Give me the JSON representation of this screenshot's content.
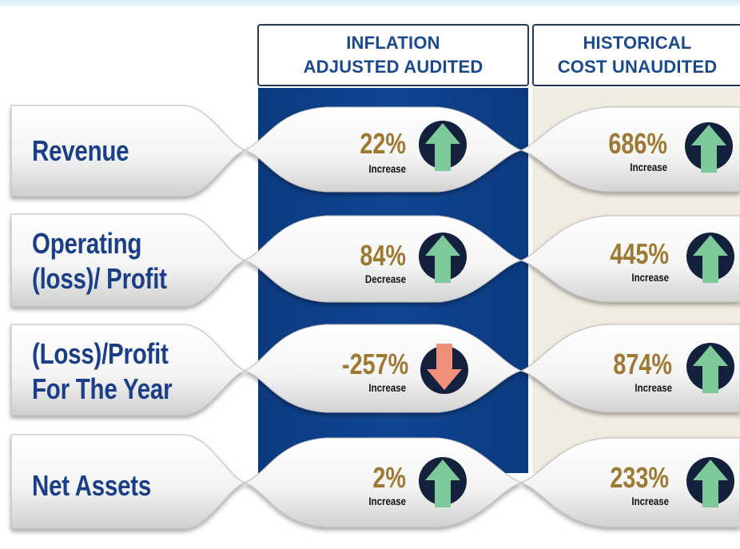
{
  "columns": {
    "inflation_adjusted": [
      "INFLATION",
      "ADJUSTED AUDITED"
    ],
    "historical_cost": [
      "HISTORICAL",
      "COST UNAUDITED"
    ]
  },
  "rows": [
    {
      "label": [
        "Revenue"
      ],
      "inflation_adjusted": {
        "value": "22%",
        "change": "Increase",
        "arrow": "up-arrow-icon"
      },
      "historical_cost": {
        "value": "686%",
        "change": "Increase",
        "arrow": "up-arrow-icon"
      }
    },
    {
      "label": [
        "Operating",
        "(loss)/ Profit"
      ],
      "inflation_adjusted": {
        "value": "84%",
        "change": "Decrease",
        "arrow": "up-arrow-icon"
      },
      "historical_cost": {
        "value": "445%",
        "change": "Increase",
        "arrow": "up-arrow-icon"
      }
    },
    {
      "label": [
        "(Loss)/Profit",
        "For The Year"
      ],
      "inflation_adjusted": {
        "value": "-257%",
        "change": "Increase",
        "arrow": "down-arrow-icon"
      },
      "historical_cost": {
        "value": "874%",
        "change": "Increase",
        "arrow": "up-arrow-icon"
      }
    },
    {
      "label": [
        "Net Assets"
      ],
      "inflation_adjusted": {
        "value": "2%",
        "change": "Increase",
        "arrow": "up-arrow-icon"
      },
      "historical_cost": {
        "value": "233%",
        "change": "Increase",
        "arrow": "up-arrow-icon"
      }
    }
  ],
  "colors": {
    "header_text": "#1b4a8c",
    "label_text": "#1b3f86",
    "percent_text": "#9d7933",
    "band_blue": "#104693",
    "band_beige": "#f1ece2",
    "arrow_circle": "#14213d",
    "arrow_up": "#7dc99a",
    "arrow_down": "#f0907a"
  }
}
